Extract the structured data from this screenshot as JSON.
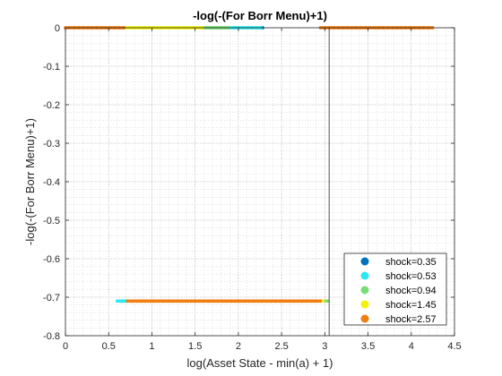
{
  "chart_data": {
    "type": "scatter",
    "title": "-log(-(For Borr Menu)+1)",
    "xlabel": "log(Asset State - min(a) + 1)",
    "ylabel": "-log(-(For Borr Menu)+1)",
    "xlim": [
      0,
      4.5
    ],
    "ylim": [
      -0.8,
      0
    ],
    "xticks": [
      "0",
      "0.5",
      "1",
      "1.5",
      "2",
      "2.5",
      "3",
      "3.5",
      "4",
      "4.5"
    ],
    "yticks": [
      "0",
      "-0.1",
      "-0.2",
      "-0.3",
      "-0.4",
      "-0.5",
      "-0.6",
      "-0.7",
      "-0.8"
    ],
    "grid": "on (major and minor, dotted)",
    "legend_position": "bottom-right",
    "vertical_reference_line_x": 3.05,
    "series": [
      {
        "name": "shock=0.35",
        "color": "#0072BD",
        "segments": [
          {
            "x_range": [
              0.7,
              0.73
            ],
            "y": -0.71
          },
          {
            "x_range": [
              2.28,
              2.3
            ],
            "y": 0
          }
        ]
      },
      {
        "name": "shock=0.53",
        "color": "#2EE8F0",
        "segments": [
          {
            "x_range": [
              0.6,
              0.7
            ],
            "y": -0.71
          },
          {
            "x_range": [
              1.9,
              2.28
            ],
            "y": 0
          }
        ]
      },
      {
        "name": "shock=0.94",
        "color": "#77DD77",
        "segments": [
          {
            "x_range": [
              3.0,
              3.05
            ],
            "y": -0.71
          },
          {
            "x_range": [
              1.6,
              1.9
            ],
            "y": 0
          }
        ]
      },
      {
        "name": "shock=1.45",
        "color": "#F2F20A",
        "segments": [
          {
            "x_range": [
              2.95,
              3.0
            ],
            "y": -0.71
          },
          {
            "x_range": [
              0.7,
              1.6
            ],
            "y": 0
          }
        ]
      },
      {
        "name": "shock=2.57",
        "color": "#F07F12",
        "segments": [
          {
            "x_range": [
              0.72,
              2.95
            ],
            "y": -0.71
          },
          {
            "x_range": [
              0.0,
              0.7
            ],
            "y": 0
          },
          {
            "x_range": [
              2.95,
              4.25
            ],
            "y": 0
          }
        ]
      }
    ]
  }
}
